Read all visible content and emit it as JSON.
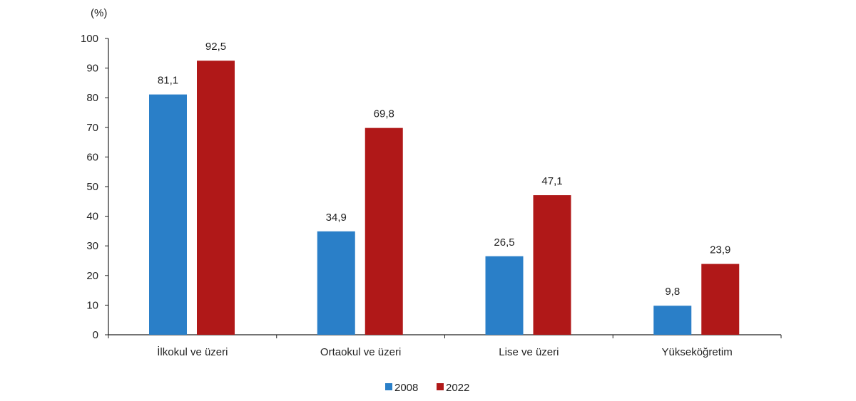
{
  "chart_data": {
    "type": "bar",
    "title": "",
    "xlabel": "",
    "ylabel": "(%)",
    "ylim": [
      0,
      100
    ],
    "yticks": [
      0,
      10,
      20,
      30,
      40,
      50,
      60,
      70,
      80,
      90,
      100
    ],
    "grid": false,
    "legend_position": "bottom",
    "categories": [
      "İlkokul ve üzeri",
      "Ortaokul ve üzeri",
      "Lise ve üzeri",
      "Yükseköğretim"
    ],
    "series": [
      {
        "name": "2008",
        "color": "#2a7fc8",
        "values": [
          81.1,
          34.9,
          26.5,
          9.8
        ],
        "labels": [
          "81,1",
          "34,9",
          "26,5",
          "9,8"
        ]
      },
      {
        "name": "2022",
        "color": "#b01818",
        "values": [
          92.5,
          69.8,
          47.1,
          23.9
        ],
        "labels": [
          "92,5",
          "69,8",
          "47,1",
          "23,9"
        ]
      }
    ]
  }
}
